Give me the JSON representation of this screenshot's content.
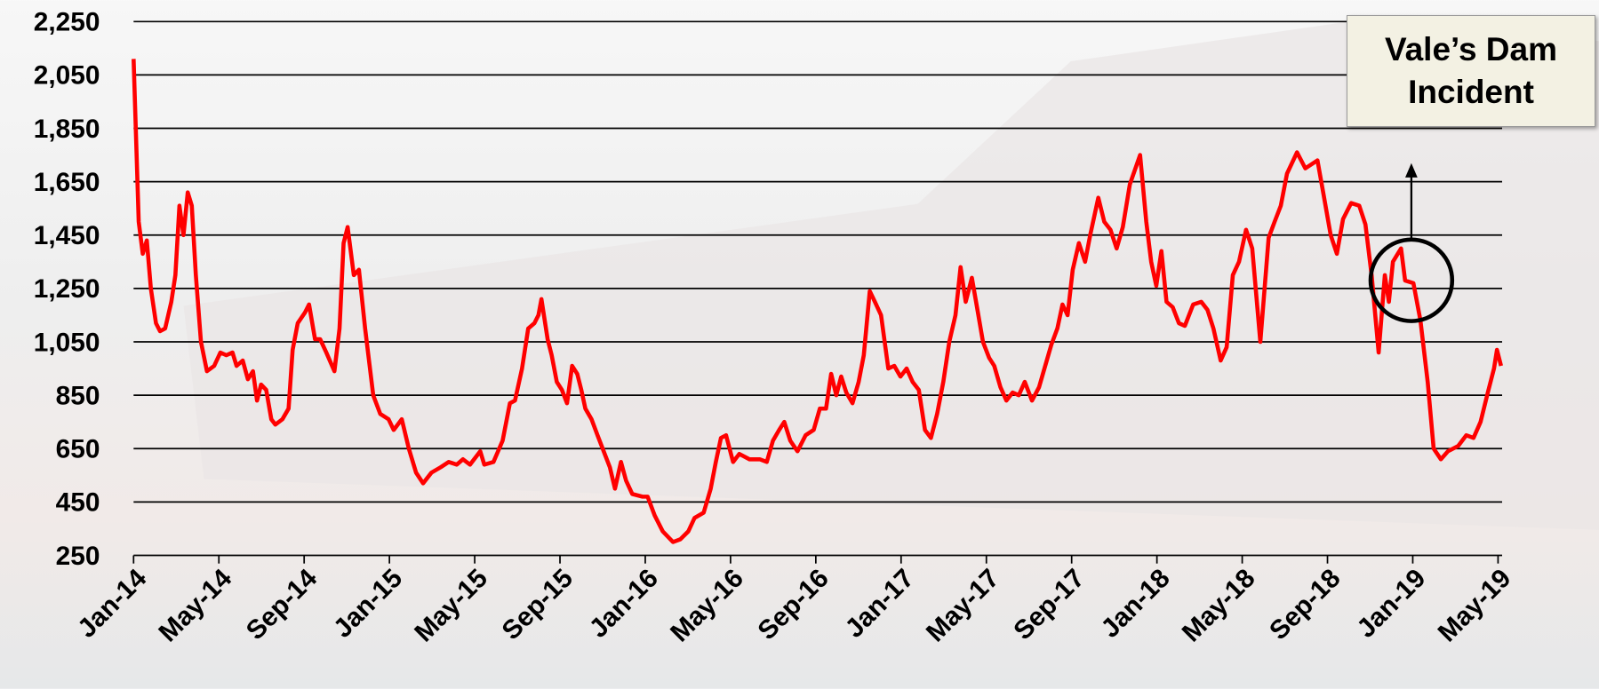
{
  "chart_data": {
    "type": "line",
    "annotation": "Vale’s Dam Incident",
    "x": [
      0,
      0.24,
      0.43,
      0.62,
      0.81,
      1.05,
      1.24,
      1.48,
      1.77,
      1.96,
      2.15,
      2.34,
      2.54,
      2.73,
      2.92,
      3.16,
      3.44,
      3.78,
      4.07,
      4.35,
      4.64,
      4.83,
      5.12,
      5.36,
      5.6,
      5.79,
      5.98,
      6.22,
      6.46,
      6.65,
      6.98,
      7.27,
      7.46,
      7.7,
      8.04,
      8.23,
      8.51,
      8.75,
      9.04,
      9.42,
      9.66,
      9.85,
      10.04,
      10.33,
      10.57,
      10.86,
      11.24,
      11.57,
      11.96,
      12.2,
      12.58,
      12.91,
      13.25,
      13.58,
      13.97,
      14.4,
      14.78,
      15.16,
      15.45,
      15.78,
      16.26,
      16.45,
      16.88,
      17.31,
      17.65,
      17.89,
      18.22,
      18.51,
      18.8,
      18.99,
      19.13,
      19.42,
      19.61,
      19.85,
      20.09,
      20.33,
      20.57,
      20.81,
      21.0,
      21.19,
      21.48,
      21.76,
      22.05,
      22.34,
      22.58,
      22.86,
      23.1,
      23.39,
      23.87,
      24.11,
      24.44,
      24.82,
      25.3,
      25.64,
      26.02,
      26.31,
      26.74,
      27.07,
      27.31,
      27.55,
      27.79,
      28.12,
      28.41,
      28.89,
      29.37,
      29.7,
      29.99,
      30.28,
      30.52,
      30.8,
      31.14,
      31.52,
      31.9,
      32.19,
      32.48,
      32.72,
      32.96,
      33.19,
      33.43,
      33.72,
      34.01,
      34.25,
      34.53,
      34.77,
      35.06,
      35.4,
      35.68,
      35.97,
      36.26,
      36.54,
      36.83,
      37.12,
      37.4,
      37.69,
      37.98,
      38.26,
      38.55,
      38.79,
      39.03,
      39.32,
      39.56,
      39.84,
      40.13,
      40.37,
      40.66,
      40.94,
      41.23,
      41.52,
      41.8,
      42.14,
      42.47,
      42.76,
      43.05,
      43.33,
      43.57,
      43.81,
      44.05,
      44.34,
      44.63,
      44.87,
      45.25,
      45.53,
      45.82,
      46.11,
      46.4,
      46.73,
      47.21,
      47.5,
      47.73,
      47.97,
      48.21,
      48.45,
      48.74,
      49.03,
      49.31,
      49.7,
      50.08,
      50.37,
      50.65,
      50.99,
      51.27,
      51.56,
      51.85,
      52.18,
      52.47,
      52.85,
      53.24,
      53.52,
      53.81,
      54.1,
      54.57,
      54.96,
      55.53,
      55.82,
      56.15,
      56.44,
      56.73,
      57.11,
      57.49,
      57.78,
      58.07,
      58.4,
      58.69,
      58.88,
      59.07,
      59.45,
      59.64,
      60.03,
      60.36,
      60.7,
      60.98,
      61.32,
      61.65,
      62.13,
      62.51,
      62.85,
      63.18,
      63.52,
      63.81,
      63.95,
      64.14
    ],
    "series": [
      {
        "color": "#ff0000",
        "values": [
          2110,
          1500,
          1380,
          1430,
          1250,
          1120,
          1090,
          1100,
          1200,
          1300,
          1560,
          1450,
          1610,
          1560,
          1300,
          1050,
          940,
          960,
          1010,
          1000,
          1010,
          960,
          980,
          910,
          940,
          830,
          890,
          870,
          760,
          740,
          760,
          800,
          1020,
          1120,
          1160,
          1190,
          1060,
          1060,
          1010,
          940,
          1100,
          1420,
          1480,
          1300,
          1320,
          1100,
          850,
          780,
          760,
          720,
          760,
          650,
          560,
          520,
          560,
          580,
          600,
          590,
          610,
          590,
          640,
          590,
          600,
          680,
          820,
          830,
          950,
          1100,
          1120,
          1150,
          1210,
          1060,
          1000,
          900,
          870,
          820,
          960,
          930,
          870,
          800,
          760,
          700,
          640,
          580,
          500,
          600,
          530,
          480,
          470,
          470,
          400,
          340,
          300,
          310,
          340,
          390,
          410,
          500,
          600,
          690,
          700,
          600,
          630,
          610,
          610,
          600,
          680,
          720,
          750,
          680,
          640,
          700,
          720,
          800,
          800,
          930,
          850,
          920,
          860,
          820,
          900,
          1000,
          1240,
          1200,
          1150,
          950,
          960,
          920,
          950,
          900,
          870,
          720,
          690,
          780,
          900,
          1050,
          1150,
          1330,
          1200,
          1290,
          1180,
          1050,
          990,
          960,
          880,
          830,
          860,
          850,
          900,
          830,
          880,
          960,
          1040,
          1100,
          1190,
          1150,
          1320,
          1420,
          1350,
          1450,
          1590,
          1500,
          1470,
          1400,
          1480,
          1640,
          1750,
          1500,
          1350,
          1260,
          1390,
          1200,
          1180,
          1120,
          1110,
          1190,
          1200,
          1170,
          1100,
          980,
          1030,
          1300,
          1350,
          1470,
          1400,
          1050,
          1440,
          1500,
          1560,
          1680,
          1760,
          1700,
          1730,
          1600,
          1450,
          1380,
          1510,
          1570,
          1560,
          1490,
          1300,
          1010,
          1300,
          1200,
          1350,
          1400,
          1280,
          1270,
          1130,
          900,
          650,
          610,
          640,
          660,
          700,
          690,
          750,
          860,
          950,
          1020,
          960
        ]
      }
    ],
    "xlim": [
      0,
      64
    ],
    "xticks": [
      {
        "value": 0,
        "label": "Jan-14"
      },
      {
        "value": 4,
        "label": "May-14"
      },
      {
        "value": 8,
        "label": "Sep-14"
      },
      {
        "value": 12,
        "label": "Jan-15"
      },
      {
        "value": 16,
        "label": "May-15"
      },
      {
        "value": 20,
        "label": "Sep-15"
      },
      {
        "value": 24,
        "label": "Jan-16"
      },
      {
        "value": 28,
        "label": "May-16"
      },
      {
        "value": 32,
        "label": "Sep-16"
      },
      {
        "value": 36,
        "label": "Jan-17"
      },
      {
        "value": 40,
        "label": "May-17"
      },
      {
        "value": 44,
        "label": "Sep-17"
      },
      {
        "value": 48,
        "label": "Jan-18"
      },
      {
        "value": 52,
        "label": "May-18"
      },
      {
        "value": 56,
        "label": "Sep-18"
      },
      {
        "value": 60,
        "label": "Jan-19"
      },
      {
        "value": 64,
        "label": "May-19"
      }
    ],
    "ylim": [
      250,
      2250
    ],
    "yticks": [
      250,
      450,
      650,
      850,
      {
        "value": 1050,
        "label": "1,050"
      },
      {
        "value": 1250,
        "label": "1,250"
      },
      {
        "value": 1450,
        "label": "1,450"
      },
      {
        "value": 1650,
        "label": "1,650"
      },
      {
        "value": 1850,
        "label": "1,850"
      },
      {
        "value": 2050,
        "label": "2,050"
      },
      {
        "value": 2250,
        "label": "2,250"
      }
    ],
    "grid": true
  }
}
